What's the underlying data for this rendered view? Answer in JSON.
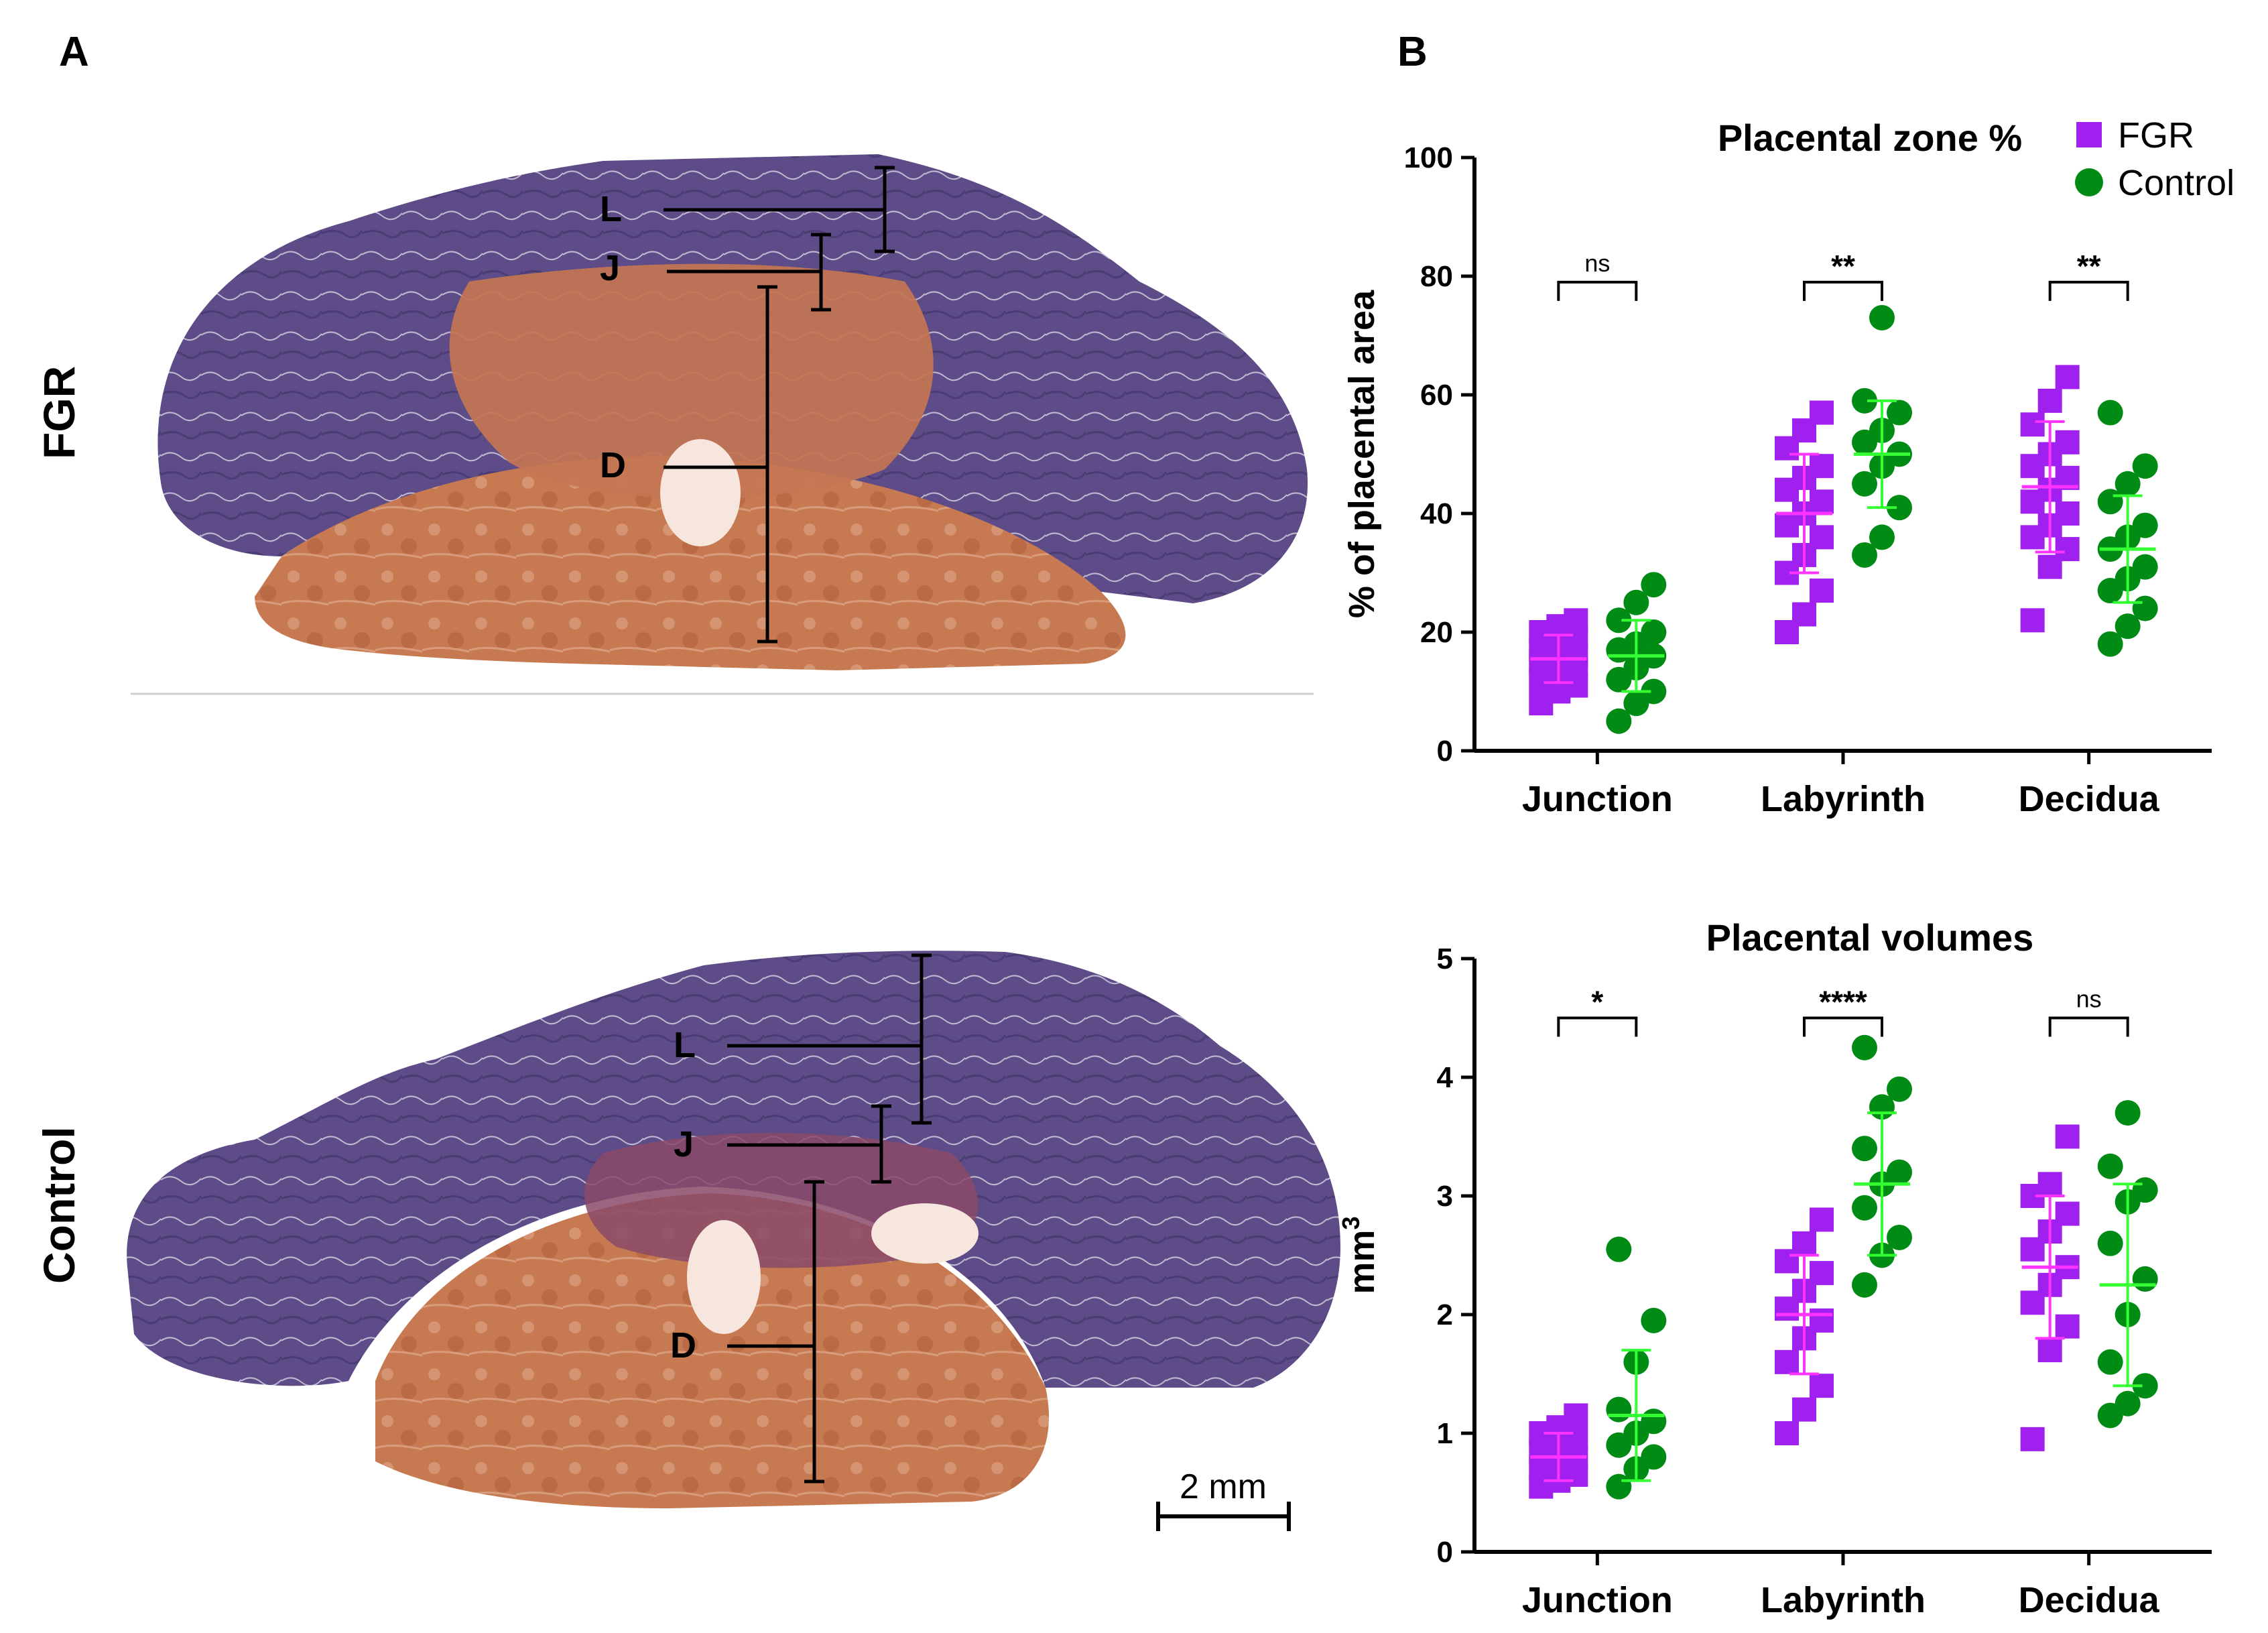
{
  "panels": {
    "a_label": "A",
    "b_label": "B",
    "row_fgr": "FGR",
    "row_control": "Control"
  },
  "zones": {
    "l": "L",
    "j": "J",
    "d": "D"
  },
  "scale_bar": "2 mm",
  "colors": {
    "fgr": "#a020f0",
    "fgr_stat": "#ff33ff",
    "control": "#008c14",
    "control_stat": "#33ff33",
    "labyrinth_tissue": "#5a4a86",
    "decidua_tissue": "#c2704a"
  },
  "legend": {
    "fgr": "FGR",
    "control": "Control"
  },
  "chart_data": [
    {
      "type": "scatter",
      "title": "Placental zone %",
      "ylabel": "% of placental area",
      "ylabel_sup": "",
      "ylim": [
        0,
        100
      ],
      "yticks": [
        "0",
        "20",
        "40",
        "60",
        "80",
        "100"
      ],
      "categories": [
        "Junction",
        "Labyrinth",
        "Decidua"
      ],
      "significance": [
        "ns",
        "**",
        "**"
      ],
      "series": [
        {
          "name": "FGR",
          "marker": "square",
          "mean": [
            15.5,
            40,
            44.5
          ],
          "sd": [
            4,
            10,
            11
          ],
          "points": [
            [
              8,
              10,
              11,
              12,
              13,
              14,
              15,
              15,
              16,
              17,
              18,
              19,
              20,
              21,
              22
            ],
            [
              20,
              23,
              27,
              30,
              33,
              36,
              38,
              40,
              42,
              44,
              46,
              48,
              51,
              54,
              57
            ],
            [
              22,
              31,
              34,
              36,
              38,
              40,
              42,
              44,
              46,
              48,
              50,
              52,
              55,
              59,
              63
            ]
          ]
        },
        {
          "name": "Control",
          "marker": "circle",
          "mean": [
            16,
            50,
            34
          ],
          "sd": [
            6,
            9,
            9
          ],
          "points": [
            [
              5,
              8,
              10,
              12,
              14,
              16,
              17,
              18,
              20,
              22,
              25,
              28
            ],
            [
              33,
              36,
              41,
              45,
              48,
              50,
              52,
              54,
              57,
              59,
              73
            ],
            [
              18,
              21,
              24,
              27,
              29,
              31,
              34,
              36,
              38,
              42,
              45,
              48,
              57
            ]
          ]
        }
      ]
    },
    {
      "type": "scatter",
      "title": "Placental volumes",
      "ylabel": "mm",
      "ylabel_sup": "3",
      "ylim": [
        0,
        5
      ],
      "yticks": [
        "0",
        "1",
        "2",
        "3",
        "4",
        "5"
      ],
      "categories": [
        "Junction",
        "Labyrinth",
        "Decidua"
      ],
      "significance": [
        "*",
        "****",
        "ns"
      ],
      "series": [
        {
          "name": "FGR",
          "marker": "square",
          "mean": [
            0.8,
            2.0,
            2.4
          ],
          "sd": [
            0.2,
            0.5,
            0.6
          ],
          "points": [
            [
              0.55,
              0.6,
              0.65,
              0.7,
              0.75,
              0.8,
              0.85,
              0.9,
              0.95,
              1.0,
              1.05,
              1.15
            ],
            [
              1.0,
              1.2,
              1.4,
              1.6,
              1.8,
              1.95,
              2.05,
              2.2,
              2.35,
              2.45,
              2.6,
              2.8
            ],
            [
              0.95,
              1.7,
              1.9,
              2.1,
              2.25,
              2.4,
              2.55,
              2.7,
              2.85,
              3.0,
              3.1,
              3.5
            ]
          ]
        },
        {
          "name": "Control",
          "marker": "circle",
          "mean": [
            1.15,
            3.1,
            2.25
          ],
          "sd": [
            0.55,
            0.6,
            0.85
          ],
          "points": [
            [
              0.55,
              0.7,
              0.8,
              0.9,
              1.0,
              1.1,
              1.2,
              1.6,
              1.95,
              2.55
            ],
            [
              2.25,
              2.5,
              2.65,
              2.9,
              3.1,
              3.2,
              3.4,
              3.75,
              3.9,
              4.25
            ],
            [
              1.15,
              1.25,
              1.4,
              1.6,
              2.0,
              2.3,
              2.6,
              2.95,
              3.05,
              3.25,
              3.7
            ]
          ]
        }
      ]
    }
  ]
}
